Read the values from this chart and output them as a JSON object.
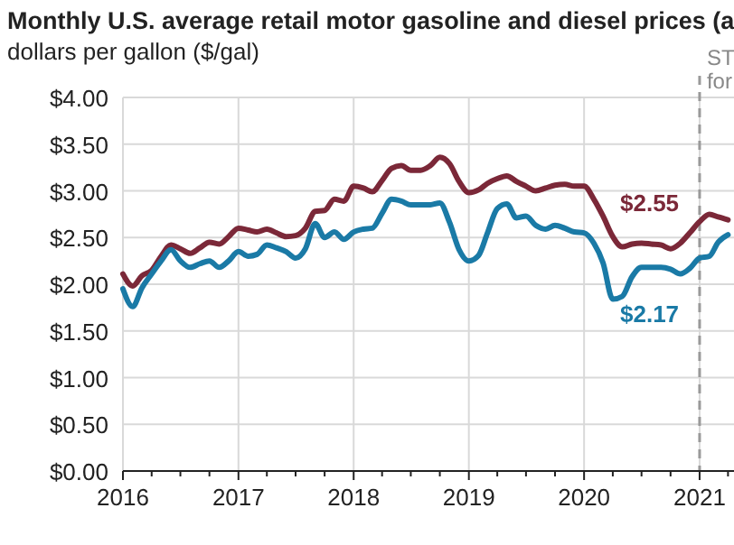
{
  "chart_data": {
    "type": "line",
    "title": "Monthly U.S. average retail motor gasoline and diesel prices (a",
    "subtitle": "dollars per gallon ($/gal)",
    "x": [
      "2016-01",
      "2016-02",
      "2016-03",
      "2016-04",
      "2016-05",
      "2016-06",
      "2016-07",
      "2016-08",
      "2016-09",
      "2016-10",
      "2016-11",
      "2016-12",
      "2017-01",
      "2017-02",
      "2017-03",
      "2017-04",
      "2017-05",
      "2017-06",
      "2017-07",
      "2017-08",
      "2017-09",
      "2017-10",
      "2017-11",
      "2017-12",
      "2018-01",
      "2018-02",
      "2018-03",
      "2018-04",
      "2018-05",
      "2018-06",
      "2018-07",
      "2018-08",
      "2018-09",
      "2018-10",
      "2018-11",
      "2018-12",
      "2019-01",
      "2019-02",
      "2019-03",
      "2019-04",
      "2019-05",
      "2019-06",
      "2019-07",
      "2019-08",
      "2019-09",
      "2019-10",
      "2019-11",
      "2019-12",
      "2020-01",
      "2020-02",
      "2020-03",
      "2020-04",
      "2020-05",
      "2020-06",
      "2020-07",
      "2020-08",
      "2020-09",
      "2020-10",
      "2020-11",
      "2020-12",
      "2021-01",
      "2021-02",
      "2021-03",
      "2021-04"
    ],
    "series": [
      {
        "color": "#7b2838",
        "values": [
          2.11,
          1.98,
          2.09,
          2.15,
          2.3,
          2.42,
          2.38,
          2.33,
          2.39,
          2.45,
          2.43,
          2.51,
          2.6,
          2.58,
          2.56,
          2.59,
          2.55,
          2.51,
          2.52,
          2.6,
          2.78,
          2.79,
          2.91,
          2.89,
          3.05,
          3.03,
          2.99,
          3.11,
          3.24,
          3.27,
          3.22,
          3.22,
          3.27,
          3.36,
          3.29,
          3.1,
          2.98,
          3.01,
          3.08,
          3.13,
          3.16,
          3.1,
          3.05,
          3.0,
          3.03,
          3.06,
          3.07,
          3.05,
          3.05,
          2.91,
          2.73,
          2.51,
          2.4,
          2.43,
          2.44,
          2.43,
          2.42,
          2.38,
          2.44,
          2.55,
          2.67,
          2.75,
          2.72,
          2.69
        ],
        "value_labels": [
          null,
          null,
          null,
          null,
          null,
          null,
          null,
          null,
          null,
          null,
          null,
          null,
          null,
          null,
          null,
          null,
          null,
          null,
          null,
          null,
          null,
          null,
          null,
          null,
          null,
          null,
          null,
          null,
          null,
          null,
          null,
          null,
          null,
          null,
          null,
          null,
          null,
          null,
          null,
          null,
          null,
          null,
          null,
          null,
          null,
          null,
          null,
          null,
          null,
          null,
          null,
          null,
          null,
          null,
          null,
          null,
          null,
          null,
          null,
          "$2.55",
          null,
          null,
          null,
          null
        ]
      },
      {
        "color": "#1a7aa6",
        "values": [
          1.95,
          1.76,
          1.96,
          2.11,
          2.25,
          2.37,
          2.25,
          2.18,
          2.22,
          2.25,
          2.18,
          2.25,
          2.35,
          2.3,
          2.32,
          2.42,
          2.39,
          2.35,
          2.28,
          2.38,
          2.65,
          2.5,
          2.56,
          2.48,
          2.56,
          2.59,
          2.6,
          2.76,
          2.91,
          2.89,
          2.85,
          2.85,
          2.85,
          2.87,
          2.66,
          2.37,
          2.25,
          2.31,
          2.55,
          2.81,
          2.86,
          2.71,
          2.73,
          2.63,
          2.59,
          2.63,
          2.6,
          2.56,
          2.55,
          2.44,
          2.23,
          1.84,
          1.87,
          2.08,
          2.18,
          2.18,
          2.18,
          2.16,
          2.11,
          2.17,
          2.28,
          2.3,
          2.45,
          2.53
        ],
        "value_labels": [
          null,
          null,
          null,
          null,
          null,
          null,
          null,
          null,
          null,
          null,
          null,
          null,
          null,
          null,
          null,
          null,
          null,
          null,
          null,
          null,
          null,
          null,
          null,
          null,
          null,
          null,
          null,
          null,
          null,
          null,
          null,
          null,
          null,
          null,
          null,
          null,
          null,
          null,
          null,
          null,
          null,
          null,
          null,
          null,
          null,
          null,
          null,
          null,
          null,
          null,
          null,
          null,
          null,
          null,
          null,
          null,
          null,
          null,
          null,
          "$2.17",
          null,
          null,
          null,
          null
        ]
      }
    ],
    "xlim": [
      "2016-01",
      "2021-04-20"
    ],
    "xticks": [
      {
        "value": "2016",
        "label": "2016"
      },
      {
        "value": "2016-04",
        "label": null
      },
      {
        "value": "2016-07",
        "label": null
      },
      {
        "value": "2016-10",
        "label": null
      },
      {
        "value": "2017",
        "label": "2017"
      },
      {
        "value": "2017-04",
        "label": null
      },
      {
        "value": "2017-07",
        "label": null
      },
      {
        "value": "2017-10",
        "label": null
      },
      {
        "value": "2018",
        "label": "2018"
      },
      {
        "value": "2018-04",
        "label": null
      },
      {
        "value": "2018-07",
        "label": null
      },
      {
        "value": "2018-10",
        "label": null
      },
      {
        "value": "2019",
        "label": "2019"
      },
      {
        "value": "2019-04",
        "label": null
      },
      {
        "value": "2019-07",
        "label": null
      },
      {
        "value": "2019-10",
        "label": null
      },
      {
        "value": "2020",
        "label": "2020"
      },
      {
        "value": "2020-04",
        "label": null
      },
      {
        "value": "2020-07",
        "label": null
      },
      {
        "value": "2020-10",
        "label": null
      },
      {
        "value": "2021",
        "label": "2021"
      },
      {
        "value": "2021-04",
        "label": null
      }
    ],
    "ylim": [
      0,
      4
    ],
    "yticks": [
      {
        "value": 0,
        "label": "$0.00"
      },
      {
        "value": 0.5,
        "label": "$0.50"
      },
      {
        "value": 1,
        "label": "$1.00"
      },
      {
        "value": 1.5,
        "label": "$1.50"
      },
      {
        "value": 2,
        "label": "$2.00"
      },
      {
        "value": 2.5,
        "label": "$2.50"
      },
      {
        "value": 3,
        "label": "$3.00"
      },
      {
        "value": 3.5,
        "label": "$3.50"
      },
      {
        "value": 4,
        "label": "$4.00"
      }
    ],
    "grid": true,
    "marker": "none",
    "line_style": "solid",
    "ref_lines": [
      {
        "axis": "x",
        "value": "2021-01",
        "label": "ST\nfor",
        "color": "#9a9a9a",
        "line_style": "dashed"
      }
    ]
  }
}
